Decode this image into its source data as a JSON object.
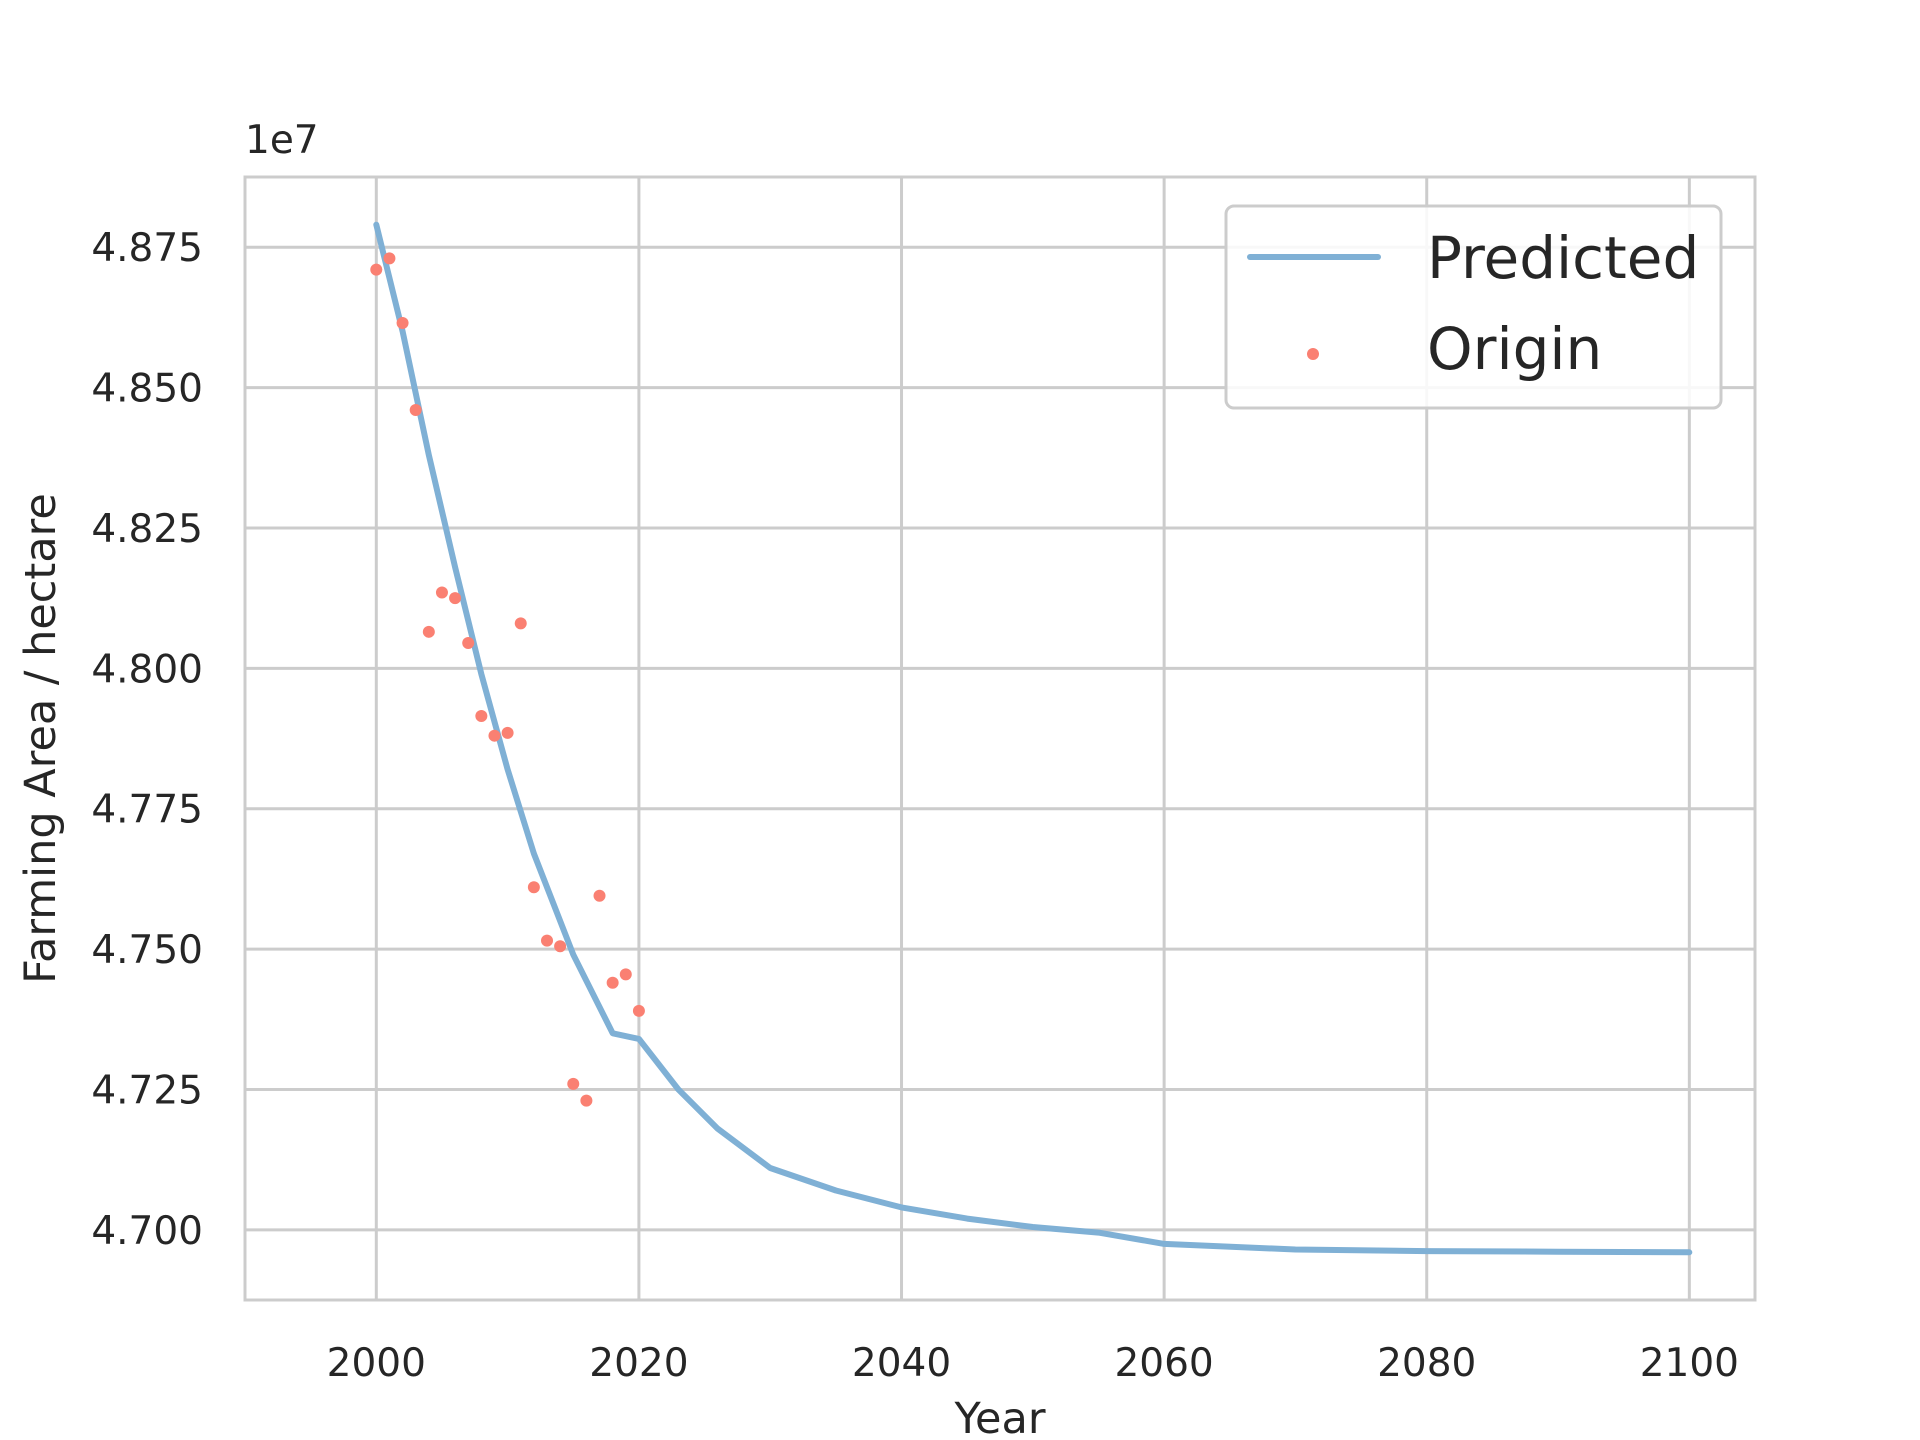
{
  "chart_data": {
    "type": "line",
    "xlabel": "Year",
    "ylabel": "Farming Area / hectare",
    "offset_label": "1e7",
    "xlim": [
      1990,
      2105
    ],
    "ylim": [
      4.6875,
      4.8875
    ],
    "x_ticks": [
      2000,
      2020,
      2040,
      2060,
      2080,
      2100
    ],
    "x_tick_labels": [
      "2000",
      "2020",
      "2040",
      "2060",
      "2080",
      "2100"
    ],
    "y_ticks": [
      4.7,
      4.725,
      4.75,
      4.775,
      4.8,
      4.825,
      4.85,
      4.875
    ],
    "y_tick_labels": [
      "4.700",
      "4.725",
      "4.750",
      "4.775",
      "4.800",
      "4.825",
      "4.850",
      "4.875"
    ],
    "grid": true,
    "legend_position": "top-right",
    "series": [
      {
        "name": "Predicted",
        "kind": "line",
        "color": "#7fb0d5",
        "x": [
          2000,
          2002,
          2004,
          2006,
          2008,
          2010,
          2012,
          2015,
          2018,
          2020,
          2023,
          2026,
          2030,
          2035,
          2040,
          2045,
          2050,
          2055,
          2060,
          2070,
          2080,
          2090,
          2100
        ],
        "y": [
          4.879,
          4.86,
          4.838,
          4.818,
          4.799,
          4.782,
          4.767,
          4.749,
          4.735,
          4.734,
          4.725,
          4.718,
          4.711,
          4.707,
          4.704,
          4.702,
          4.7005,
          4.6995,
          4.6975,
          4.6965,
          4.6962,
          4.6961,
          4.696
        ]
      },
      {
        "name": "Origin",
        "kind": "scatter",
        "color": "#fa8072",
        "x": [
          2000,
          2001,
          2002,
          2003,
          2004,
          2005,
          2006,
          2007,
          2008,
          2009,
          2010,
          2011,
          2012,
          2013,
          2014,
          2015,
          2016,
          2017,
          2018,
          2019,
          2020
        ],
        "y": [
          4.871,
          4.873,
          4.8615,
          4.846,
          4.8065,
          4.8135,
          4.8125,
          4.8045,
          4.7915,
          4.788,
          4.7885,
          4.808,
          4.761,
          4.7515,
          4.7505,
          4.726,
          4.723,
          4.7595,
          4.744,
          4.7455,
          4.739
        ]
      }
    ]
  }
}
